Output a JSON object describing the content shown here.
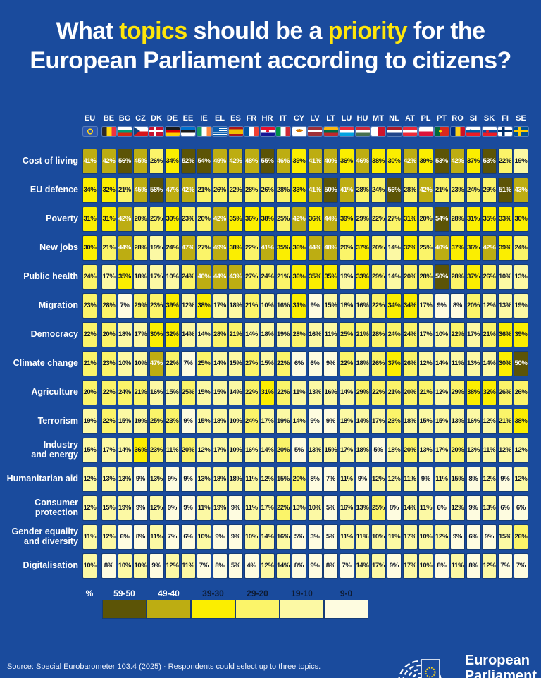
{
  "title": {
    "p1": "What ",
    "p2": "topics",
    "p3": " should be a ",
    "p4": "priority",
    "p5": " for the",
    "line2": "European Parliament according to citizens?"
  },
  "chart_data": {
    "type": "heatmap",
    "title": "What topics should be a priority for the European Parliament according to citizens?",
    "columns": [
      "EU",
      "BE",
      "BG",
      "CZ",
      "DK",
      "DE",
      "EE",
      "IE",
      "EL",
      "ES",
      "FR",
      "HR",
      "IT",
      "CY",
      "LV",
      "LT",
      "LU",
      "HU",
      "MT",
      "NL",
      "AT",
      "PL",
      "PT",
      "RO",
      "SI",
      "SK",
      "FI",
      "SE"
    ],
    "unit": "%",
    "rows": [
      {
        "label": "Cost of living",
        "values": [
          41,
          42,
          56,
          45,
          26,
          34,
          52,
          54,
          49,
          42,
          48,
          55,
          46,
          39,
          41,
          40,
          36,
          46,
          38,
          30,
          42,
          39,
          53,
          42,
          37,
          53,
          22,
          19
        ]
      },
      {
        "label": "EU defence",
        "values": [
          34,
          32,
          21,
          45,
          58,
          47,
          42,
          21,
          26,
          22,
          28,
          26,
          28,
          33,
          41,
          50,
          41,
          28,
          24,
          56,
          28,
          42,
          21,
          23,
          24,
          29,
          51,
          43
        ]
      },
      {
        "label": "Poverty",
        "values": [
          31,
          31,
          42,
          20,
          23,
          30,
          23,
          20,
          42,
          35,
          36,
          38,
          25,
          42,
          36,
          44,
          39,
          29,
          22,
          27,
          31,
          20,
          54,
          28,
          31,
          35,
          33,
          30
        ]
      },
      {
        "label": "New jobs",
        "values": [
          30,
          21,
          44,
          28,
          19,
          24,
          47,
          27,
          49,
          38,
          22,
          41,
          35,
          36,
          44,
          48,
          20,
          37,
          20,
          14,
          32,
          25,
          40,
          37,
          36,
          42,
          39,
          24
        ]
      },
      {
        "label": "Public health",
        "values": [
          24,
          17,
          35,
          18,
          17,
          10,
          24,
          40,
          44,
          43,
          27,
          24,
          21,
          36,
          35,
          35,
          19,
          33,
          29,
          14,
          20,
          28,
          50,
          28,
          37,
          26,
          10,
          13
        ]
      },
      {
        "label": "Migration",
        "values": [
          23,
          28,
          7,
          29,
          23,
          39,
          12,
          38,
          17,
          18,
          21,
          10,
          16,
          31,
          9,
          15,
          18,
          16,
          22,
          34,
          34,
          17,
          9,
          8,
          20,
          12,
          13,
          19
        ]
      },
      {
        "label": "Democracy",
        "values": [
          22,
          20,
          18,
          17,
          30,
          32,
          14,
          14,
          28,
          21,
          14,
          18,
          19,
          28,
          16,
          11,
          25,
          21,
          28,
          24,
          24,
          17,
          10,
          22,
          17,
          21,
          36,
          39
        ]
      },
      {
        "label": "Climate change",
        "values": [
          21,
          23,
          10,
          10,
          47,
          22,
          7,
          25,
          14,
          15,
          27,
          15,
          22,
          6,
          6,
          9,
          22,
          18,
          26,
          37,
          26,
          12,
          14,
          11,
          13,
          14,
          30,
          50
        ]
      },
      {
        "label": "Agriculture",
        "values": [
          20,
          22,
          24,
          21,
          16,
          15,
          25,
          15,
          15,
          14,
          22,
          31,
          22,
          11,
          13,
          16,
          14,
          29,
          22,
          21,
          20,
          21,
          12,
          29,
          38,
          32,
          26,
          26
        ]
      },
      {
        "label": "Terrorism",
        "values": [
          19,
          22,
          15,
          19,
          25,
          23,
          9,
          15,
          18,
          10,
          24,
          17,
          19,
          14,
          9,
          9,
          18,
          14,
          17,
          23,
          18,
          15,
          15,
          13,
          16,
          12,
          21,
          38
        ]
      },
      {
        "label": "Industry\nand energy",
        "values": [
          15,
          17,
          14,
          36,
          23,
          11,
          20,
          12,
          17,
          10,
          16,
          14,
          20,
          5,
          13,
          15,
          17,
          18,
          5,
          18,
          20,
          13,
          17,
          20,
          13,
          11,
          12,
          12
        ]
      },
      {
        "label": "Humanitarian aid",
        "values": [
          12,
          13,
          13,
          9,
          13,
          9,
          9,
          13,
          18,
          18,
          11,
          12,
          15,
          20,
          8,
          7,
          11,
          9,
          12,
          12,
          11,
          9,
          11,
          15,
          8,
          12,
          9,
          12
        ]
      },
      {
        "label": "Consumer\nprotection",
        "values": [
          12,
          15,
          19,
          9,
          12,
          9,
          9,
          11,
          19,
          9,
          11,
          17,
          22,
          13,
          10,
          5,
          16,
          13,
          25,
          8,
          14,
          11,
          6,
          12,
          9,
          13,
          6,
          6
        ]
      },
      {
        "label": "Gender equality\nand diversity",
        "values": [
          11,
          12,
          6,
          8,
          11,
          7,
          6,
          10,
          9,
          9,
          10,
          14,
          16,
          5,
          3,
          5,
          11,
          11,
          10,
          11,
          17,
          10,
          12,
          9,
          6,
          9,
          15,
          26
        ]
      },
      {
        "label": "Digitalisation",
        "values": [
          10,
          8,
          10,
          10,
          9,
          12,
          11,
          7,
          8,
          5,
          4,
          12,
          14,
          8,
          9,
          8,
          7,
          14,
          17,
          9,
          17,
          10,
          8,
          11,
          8,
          12,
          7,
          7
        ]
      }
    ],
    "legend": {
      "unit": "%",
      "buckets": [
        {
          "range": "59-50",
          "color": "#5c5406",
          "text": "#ffffff",
          "label_color": "#ffffff"
        },
        {
          "range": "49-40",
          "color": "#bdad12",
          "text": "#ffffff",
          "label_color": "#ffffff"
        },
        {
          "range": "39-30",
          "color": "#fbee00",
          "text": "#0d1526",
          "label_color": "#0e1b33"
        },
        {
          "range": "29-20",
          "color": "#fbf469",
          "text": "#0d1526",
          "label_color": "#0e1b33"
        },
        {
          "range": "19-10",
          "color": "#fcf9a4",
          "text": "#0d1526",
          "label_color": "#0e1b33"
        },
        {
          "range": "9-0",
          "color": "#fefce0",
          "text": "#0d1526",
          "label_color": "#0e1b33"
        }
      ]
    },
    "layout": {
      "background": "#1a4b9d",
      "accent_yellow": "#ffe60a",
      "grid": "off",
      "legend_position": "bottom"
    }
  },
  "footer": {
    "source": "Source: Special Eurobarometer 103.4 (2025) · Respondents could select up to three topics.",
    "logo_line1": "European",
    "logo_line2": "Parliament"
  }
}
